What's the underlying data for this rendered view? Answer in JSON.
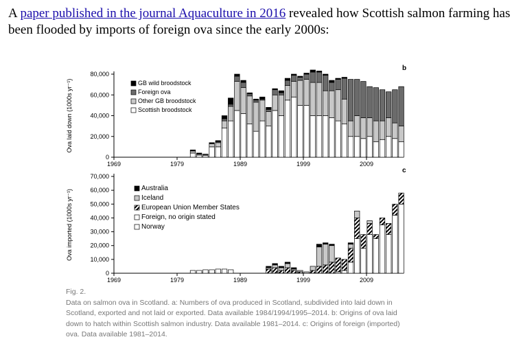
{
  "intro": {
    "before": "A ",
    "link_text": "paper published in the journal Aquaculture in 2016",
    "after": " revealed how Scottish salmon farming has been flooded by imports of foreign ova since the early 2000s:"
  },
  "chart_data": [
    {
      "type": "bar",
      "stacked": true,
      "panel": "b",
      "ylabel": "Ova laid down (1000s yr⁻¹)",
      "yticks": [
        "80,000",
        "60,000",
        "40,000",
        "20,000",
        "0"
      ],
      "xticks": [
        "1969",
        "1979",
        "1989",
        "1999",
        "2009"
      ],
      "ylim": [
        0,
        80000
      ],
      "xlim": [
        1969,
        2014
      ],
      "legend": [
        "GB wild broodstock",
        "Foreign ova",
        "Other GB broodstock",
        "Scottish broodstock"
      ],
      "years": [
        1981,
        1982,
        1983,
        1984,
        1985,
        1986,
        1987,
        1988,
        1989,
        1990,
        1991,
        1992,
        1993,
        1994,
        1995,
        1996,
        1997,
        1998,
        1999,
        2000,
        2001,
        2002,
        2003,
        2004,
        2005,
        2006,
        2007,
        2008,
        2009,
        2010,
        2011,
        2012,
        2013,
        2014
      ],
      "series": [
        {
          "name": "Scottish broodstock",
          "values": [
            4000,
            2000,
            1500,
            10000,
            10000,
            28000,
            35000,
            45000,
            42000,
            32000,
            25000,
            35000,
            30000,
            45000,
            40000,
            55000,
            58000,
            50000,
            50000,
            40000,
            40000,
            40000,
            38000,
            35000,
            32000,
            20000,
            20000,
            18000,
            20000,
            15000,
            17000,
            20000,
            18000,
            15000
          ]
        },
        {
          "name": "Other GB broodstock",
          "values": [
            2000,
            1000,
            1000,
            3000,
            4000,
            7000,
            14000,
            28000,
            25000,
            27000,
            28000,
            20000,
            14000,
            15000,
            20000,
            14000,
            15000,
            24000,
            25000,
            32000,
            32000,
            24000,
            26000,
            30000,
            24000,
            15000,
            20000,
            20000,
            18000,
            20000,
            18000,
            18000,
            15000,
            15000
          ]
        },
        {
          "name": "Foreign ova",
          "values": [
            0,
            0,
            0,
            0,
            1000,
            2000,
            2000,
            5000,
            5000,
            2000,
            2000,
            1000,
            2000,
            5000,
            2000,
            5000,
            6000,
            3000,
            5000,
            10000,
            10000,
            15000,
            8000,
            10000,
            20000,
            40000,
            35000,
            35000,
            30000,
            32000,
            30000,
            25000,
            32000,
            38000
          ]
        },
        {
          "name": "GB wild broodstock",
          "values": [
            1000,
            1000,
            500,
            1000,
            1000,
            3000,
            6000,
            2000,
            2000,
            1000,
            1000,
            2000,
            2000,
            1000,
            2000,
            2000,
            1000,
            1000,
            1000,
            2000,
            1000,
            1000,
            2000,
            1000,
            1000,
            0,
            0,
            0,
            0,
            0,
            0,
            0,
            0,
            0
          ]
        }
      ]
    },
    {
      "type": "bar",
      "stacked": true,
      "panel": "c",
      "ylabel": "Ova imported (1000s yr⁻¹)",
      "yticks": [
        "70,000",
        "60,000",
        "50,000",
        "40,000",
        "30,000",
        "20,000",
        "10,000",
        "0"
      ],
      "xticks": [
        "1969",
        "1979",
        "1989",
        "1999",
        "2009"
      ],
      "ylim": [
        0,
        70000
      ],
      "xlim": [
        1969,
        2014
      ],
      "legend": [
        "Australia",
        "Iceland",
        "European Union Member States",
        "Foreign, no origin stated",
        "Norway"
      ],
      "years": [
        1981,
        1982,
        1983,
        1984,
        1985,
        1986,
        1987,
        1988,
        1989,
        1990,
        1991,
        1992,
        1993,
        1994,
        1995,
        1996,
        1997,
        1998,
        1999,
        2000,
        2001,
        2002,
        2003,
        2004,
        2005,
        2006,
        2007,
        2008,
        2009,
        2010,
        2011,
        2012,
        2013,
        2014
      ],
      "series": [
        {
          "name": "Norway",
          "values": [
            2000,
            2000,
            2500,
            2500,
            3000,
            3000,
            2500,
            0,
            0,
            0,
            0,
            0,
            0,
            0,
            0,
            0,
            0,
            0,
            0,
            0,
            0,
            0,
            0,
            1000,
            2000,
            8000,
            25000,
            18000,
            28000,
            25000,
            35000,
            28000,
            42000,
            50000
          ]
        },
        {
          "name": "Foreign, no origin stated",
          "values": [
            0,
            0,
            0,
            0,
            0,
            0,
            0,
            0,
            0,
            0,
            0,
            0,
            0,
            0,
            0,
            0,
            0,
            0,
            0,
            0,
            0,
            0,
            0,
            0,
            0,
            0,
            0,
            0,
            0,
            0,
            0,
            0,
            0,
            0
          ]
        },
        {
          "name": "European Union Member States",
          "values": [
            0,
            0,
            0,
            0,
            0,
            0,
            0,
            0,
            0,
            0,
            0,
            0,
            3000,
            4000,
            2000,
            4000,
            2000,
            1000,
            0,
            2000,
            5000,
            6000,
            8000,
            10000,
            8000,
            10000,
            15000,
            10000,
            8000,
            3000,
            5000,
            8000,
            8000,
            8000
          ]
        },
        {
          "name": "Iceland",
          "values": [
            0,
            0,
            0,
            0,
            0,
            0,
            0,
            0,
            0,
            0,
            0,
            0,
            1000,
            2000,
            2000,
            3000,
            1000,
            1000,
            1000,
            3000,
            14000,
            15000,
            12000,
            0,
            0,
            3000,
            5000,
            0,
            2000,
            0,
            0,
            0,
            0,
            0
          ]
        },
        {
          "name": "Australia",
          "values": [
            0,
            0,
            0,
            0,
            0,
            0,
            0,
            0,
            0,
            0,
            0,
            0,
            1000,
            1000,
            1000,
            1000,
            1000,
            0,
            0,
            0,
            2000,
            1000,
            1000,
            0,
            0,
            1000,
            0,
            0,
            0,
            0,
            0,
            0,
            0,
            0
          ]
        }
      ]
    }
  ],
  "figure": {
    "label": "Fig. 2.",
    "caption_lines": [
      "Data on salmon ova in Scotland. a: Numbers of ova produced in Scotland, subdivided into laid down in",
      "Scotland, exported and not laid or exported. Data available 1984/1994/1995–2014. b: Origins of ova laid",
      "down to hatch within Scottish salmon industry. Data available 1981–2014. c: Origins of foreign (imported)",
      "ova. Data available 1981–2014."
    ]
  }
}
